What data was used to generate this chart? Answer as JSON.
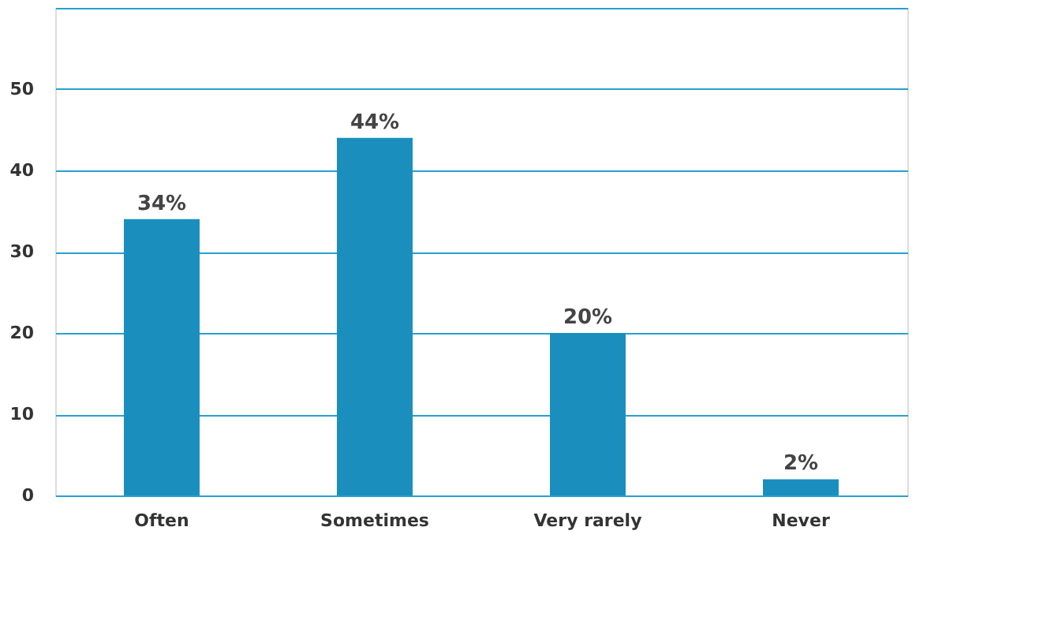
{
  "chart_data": {
    "type": "bar",
    "categories": [
      "Often",
      "Sometimes",
      "Very rarely",
      "Never"
    ],
    "values": [
      34,
      44,
      20,
      2
    ],
    "value_labels": [
      "34%",
      "44%",
      "20%",
      "2%"
    ],
    "color": "#1a8fbd",
    "ylim": [
      0,
      60
    ],
    "yticks": [
      0,
      10,
      20,
      30,
      40,
      50,
      {
        "value": 60,
        "label": null
      }
    ],
    "grid": "y"
  }
}
